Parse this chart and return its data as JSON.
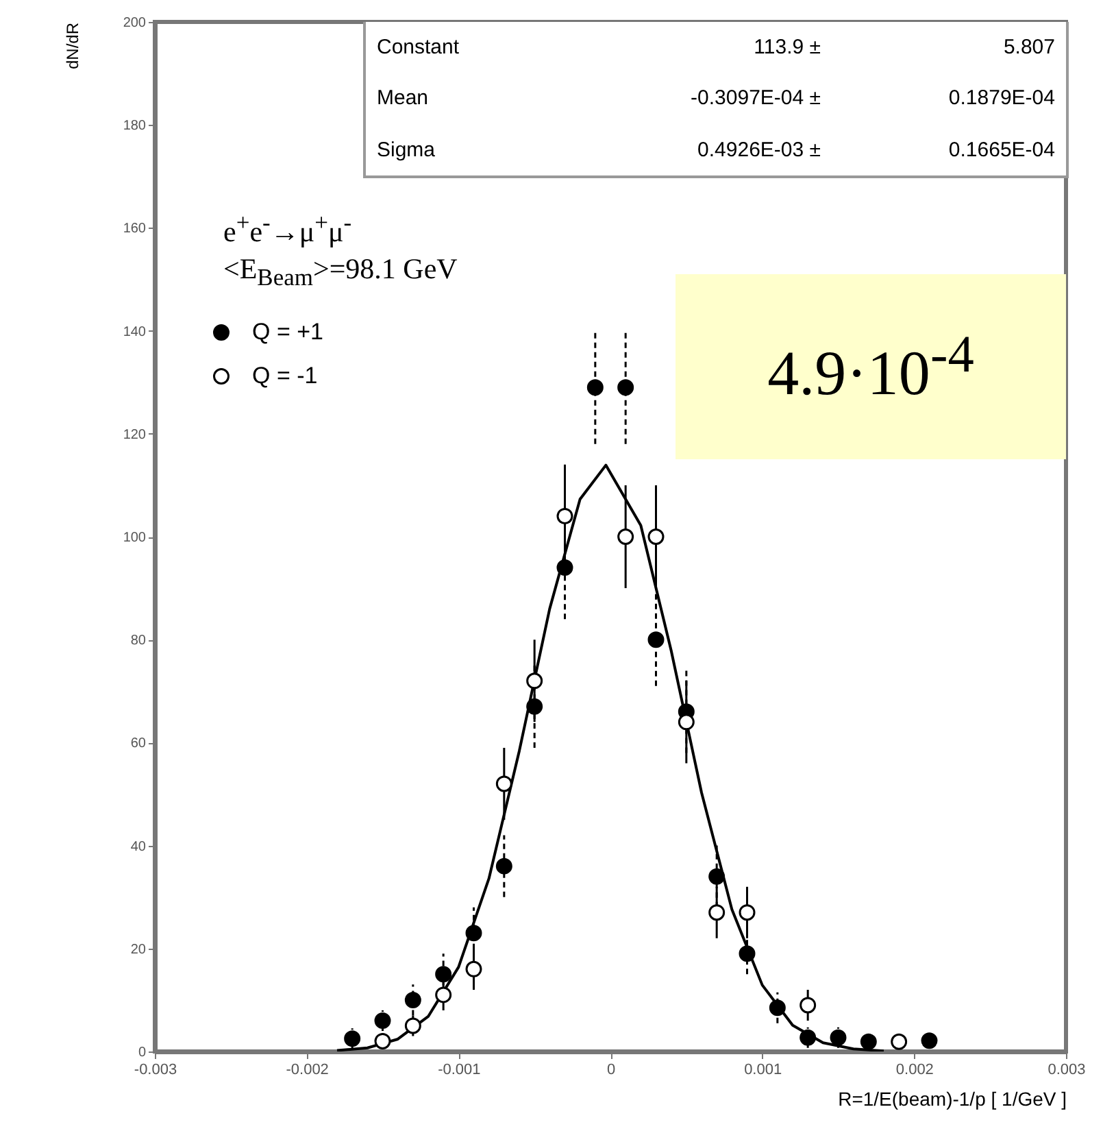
{
  "chart_data": {
    "type": "scatter",
    "ylabel": "dN/dR",
    "xlabel": "R=1/E(beam)-1/p  [ 1/GeV ]",
    "xlim": [
      -0.003,
      0.003
    ],
    "xticks": [
      -0.003,
      -0.002,
      -0.001,
      0,
      0.001,
      0.002,
      0.003
    ],
    "ylim": [
      0,
      200
    ],
    "yticks": [
      0,
      20,
      40,
      60,
      80,
      100,
      120,
      140,
      160,
      180,
      200
    ],
    "legend": "top left",
    "x": [
      -0.0017,
      -0.0015,
      -0.0013,
      -0.0011,
      -0.0009,
      -0.0007,
      -0.0005,
      -0.0003,
      -0.0001,
      0.0001,
      0.0003,
      0.0005,
      0.0007,
      0.0009,
      0.0011,
      0.0013,
      0.0015,
      0.0017,
      0.0019,
      0.0021
    ],
    "series": [
      {
        "name": "Q = +1",
        "color": "#000000",
        "marker": "circle",
        "values": [
          2.5,
          6,
          10,
          15,
          23,
          36,
          67,
          94,
          129,
          129,
          80,
          66,
          34,
          19,
          8.5,
          2.7,
          2.7,
          1.9,
          null,
          2.1
        ],
        "errors": [
          2,
          2,
          3,
          4,
          5,
          6,
          8,
          10,
          11,
          11,
          9,
          8,
          6,
          4,
          3,
          2,
          2,
          1,
          null,
          1
        ]
      },
      {
        "name": "Q = -1",
        "color": "#000000",
        "marker": "circle",
        "values": [
          null,
          2,
          5,
          11,
          16,
          52,
          72,
          104,
          null,
          100,
          100,
          64,
          27,
          27,
          null,
          9,
          null,
          null,
          1.9,
          null
        ],
        "errors": [
          null,
          1,
          2,
          3,
          4,
          7,
          8,
          10,
          null,
          10,
          10,
          8,
          5,
          5,
          null,
          3,
          null,
          null,
          1,
          null
        ]
      },
      {
        "type": "line",
        "color": "#000000",
        "x": [
          -0.0018,
          -0.0016,
          -0.0014,
          -0.0012,
          -0.001,
          -0.0008,
          -0.0006,
          -0.0004,
          -0.0002,
          -3e-05,
          0.0002,
          0.0004,
          0.0006,
          0.0008,
          0.001,
          0.0012,
          0.0014,
          0.0016,
          0.0018
        ],
        "values": [
          0.2,
          0.7,
          2.4,
          6.8,
          16.4,
          33.6,
          58.4,
          86,
          107.3,
          113.9,
          102.2,
          77.9,
          50.3,
          27.6,
          12.9,
          5.1,
          1.7,
          0.5,
          0.1
        ]
      }
    ],
    "annotations": [
      "Constant",
      "113.9 ±",
      "5.807",
      "Mean",
      "-0.3097E-04 ±",
      "0.1879E-04",
      "Sigma",
      "0.4926E-03 ±",
      "0.1665E-04",
      "e$^{+}$e$^{-}$→μ$^{+}$μ$^{-}$",
      "<E$_{Beam}$>=98.1 GeV",
      "4.9·10$^{-4}$"
    ]
  }
}
